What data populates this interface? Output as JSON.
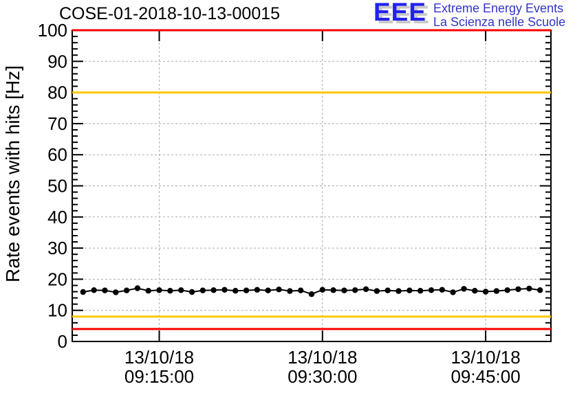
{
  "header": {
    "title": "COSE-01-2018-10-13-00015",
    "logo": {
      "acronym": "EEE",
      "line1": "Extreme Energy Events",
      "line2": "La Scienza nelle Scuole",
      "acronym_color": "#2222ee",
      "text_color": "#3333cc"
    }
  },
  "chart_data": {
    "type": "line",
    "title": "COSE-01-2018-10-13-00015",
    "xlabel": "",
    "ylabel": "Rate events with hits [Hz]",
    "ylim": [
      0,
      100
    ],
    "ytick_step": 10,
    "yminor_step": 2,
    "grid": true,
    "legend": "none",
    "x_time_range": [
      "09:07:00",
      "09:51:00"
    ],
    "xticks": [
      {
        "date": "13/10/18",
        "time": "09:15:00"
      },
      {
        "date": "13/10/18",
        "time": "09:30:00"
      },
      {
        "date": "13/10/18",
        "time": "09:45:00"
      }
    ],
    "threshold_lines": [
      {
        "name": "alarm-high",
        "value": 100,
        "color": "#ff0000"
      },
      {
        "name": "warning-high",
        "value": 80,
        "color": "#ffc800"
      },
      {
        "name": "warning-low",
        "value": 8,
        "color": "#ffc800"
      },
      {
        "name": "alarm-low",
        "value": 4,
        "color": "#ff0000"
      }
    ],
    "series": [
      {
        "name": "rate-events-with-hits",
        "color": "#000000",
        "marker": "circle",
        "x_times": [
          "09:08",
          "09:09",
          "09:10",
          "09:11",
          "09:12",
          "09:13",
          "09:14",
          "09:15",
          "09:16",
          "09:17",
          "09:18",
          "09:19",
          "09:20",
          "09:21",
          "09:22",
          "09:23",
          "09:24",
          "09:25",
          "09:26",
          "09:27",
          "09:28",
          "09:29",
          "09:30",
          "09:31",
          "09:32",
          "09:33",
          "09:34",
          "09:35",
          "09:36",
          "09:37",
          "09:38",
          "09:39",
          "09:40",
          "09:41",
          "09:42",
          "09:43",
          "09:44",
          "09:45",
          "09:46",
          "09:47",
          "09:48",
          "09:49",
          "09:50"
        ],
        "values": [
          15.9,
          16.5,
          16.4,
          15.8,
          16.4,
          17.1,
          16.3,
          16.5,
          16.3,
          16.5,
          15.9,
          16.4,
          16.5,
          16.6,
          16.3,
          16.4,
          16.6,
          16.4,
          16.7,
          16.2,
          16.4,
          15.2,
          16.6,
          16.5,
          16.4,
          16.5,
          16.8,
          16.2,
          16.4,
          16.2,
          16.4,
          16.3,
          16.5,
          16.6,
          15.8,
          16.9,
          16.3,
          16.0,
          16.2,
          16.5,
          16.8,
          17.0,
          16.5
        ]
      }
    ],
    "colors": {
      "grid": "#aaaaaa",
      "frame": "#000000"
    }
  }
}
